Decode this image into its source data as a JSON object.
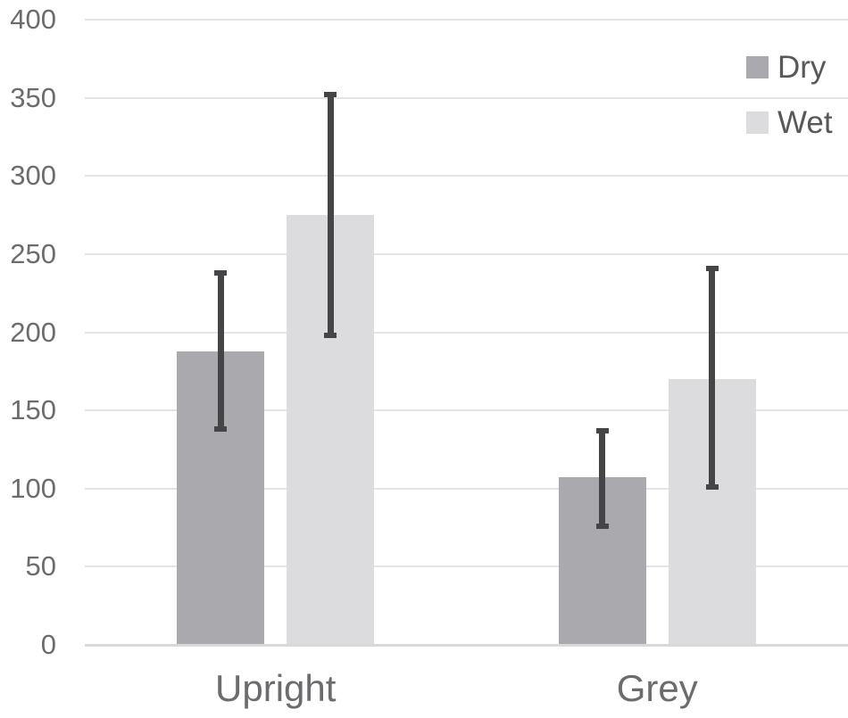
{
  "chart_data": {
    "type": "bar",
    "title": "",
    "xlabel": "",
    "ylabel": "",
    "categories": [
      "Upright",
      "Grey"
    ],
    "series": [
      {
        "name": "Dry",
        "color": "#aaaaae",
        "values": [
          188,
          107
        ],
        "error_low": [
          138,
          76
        ],
        "error_high": [
          238,
          137
        ]
      },
      {
        "name": "Wet",
        "color": "#dcdcde",
        "values": [
          275,
          170
        ],
        "error_low": [
          198,
          101
        ],
        "error_high": [
          352,
          241
        ]
      }
    ],
    "ylim": [
      0,
      400
    ],
    "ytick_step": 50,
    "y_ticks": [
      0,
      50,
      100,
      150,
      200,
      250,
      300,
      350,
      400
    ],
    "grid": true,
    "legend_position": "top-right",
    "error_bar_color": "#454548",
    "gridline_color": "#e4e4e6",
    "axis_text_color": "#6c6c6f",
    "legend_text_color": "#58585b"
  }
}
